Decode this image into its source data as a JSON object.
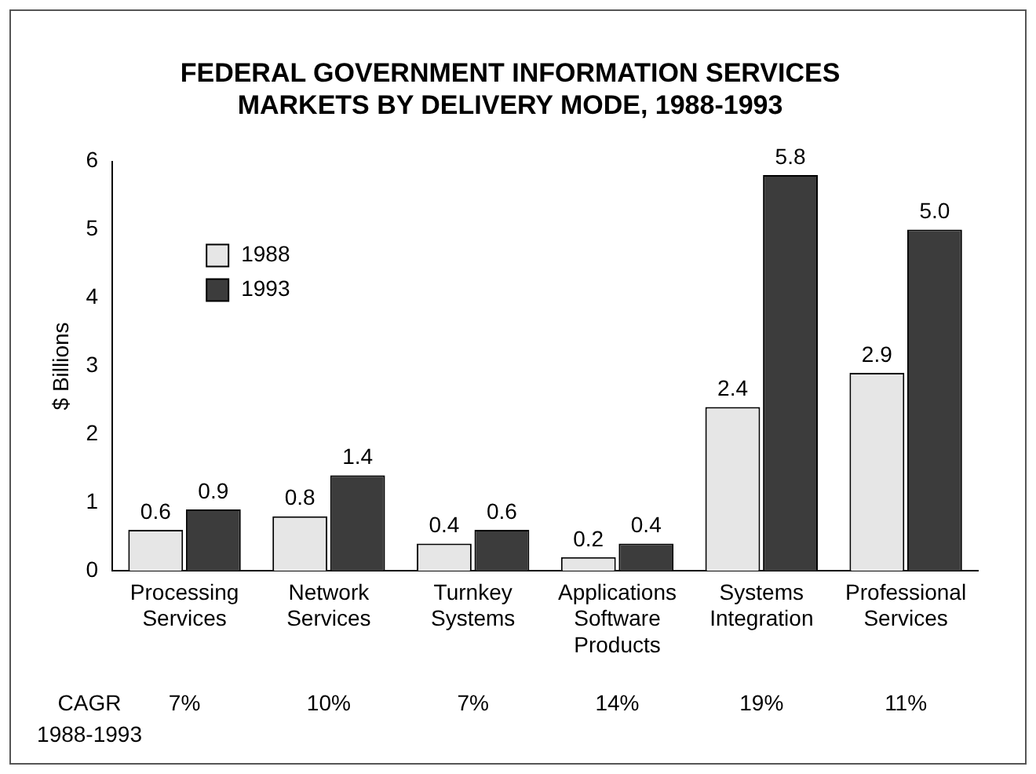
{
  "chart_data": {
    "type": "bar",
    "title": "FEDERAL GOVERNMENT INFORMATION SERVICES MARKETS BY DELIVERY MODE, 1988-1993",
    "ylabel": "$ Billions",
    "categories": [
      "Processing Services",
      "Network Services",
      "Turnkey Systems",
      "Applications Software Products",
      "Systems Integration",
      "Professional Services"
    ],
    "series": [
      {
        "name": "1988",
        "color": "#e6e6e6",
        "values": [
          0.6,
          0.8,
          0.4,
          0.2,
          2.4,
          2.9
        ],
        "value_labels": [
          "0.6",
          "0.8",
          "0.4",
          "0.2",
          "2.4",
          "2.9"
        ]
      },
      {
        "name": "1993",
        "color": "#3c3c3c",
        "values": [
          0.9,
          1.4,
          0.6,
          0.4,
          5.8,
          5.0
        ],
        "value_labels": [
          "0.9",
          "1.4",
          "0.6",
          "0.4",
          "5.8",
          "5.0"
        ]
      }
    ],
    "ylim": [
      0,
      6
    ],
    "yticks": [
      0,
      1,
      2,
      3,
      4,
      5,
      6
    ],
    "grid": false,
    "legend": "top left",
    "annotations": [
      "CAGR 1988-1993",
      "7%",
      "10%",
      "7%",
      "14%",
      "19%",
      "11%"
    ]
  }
}
